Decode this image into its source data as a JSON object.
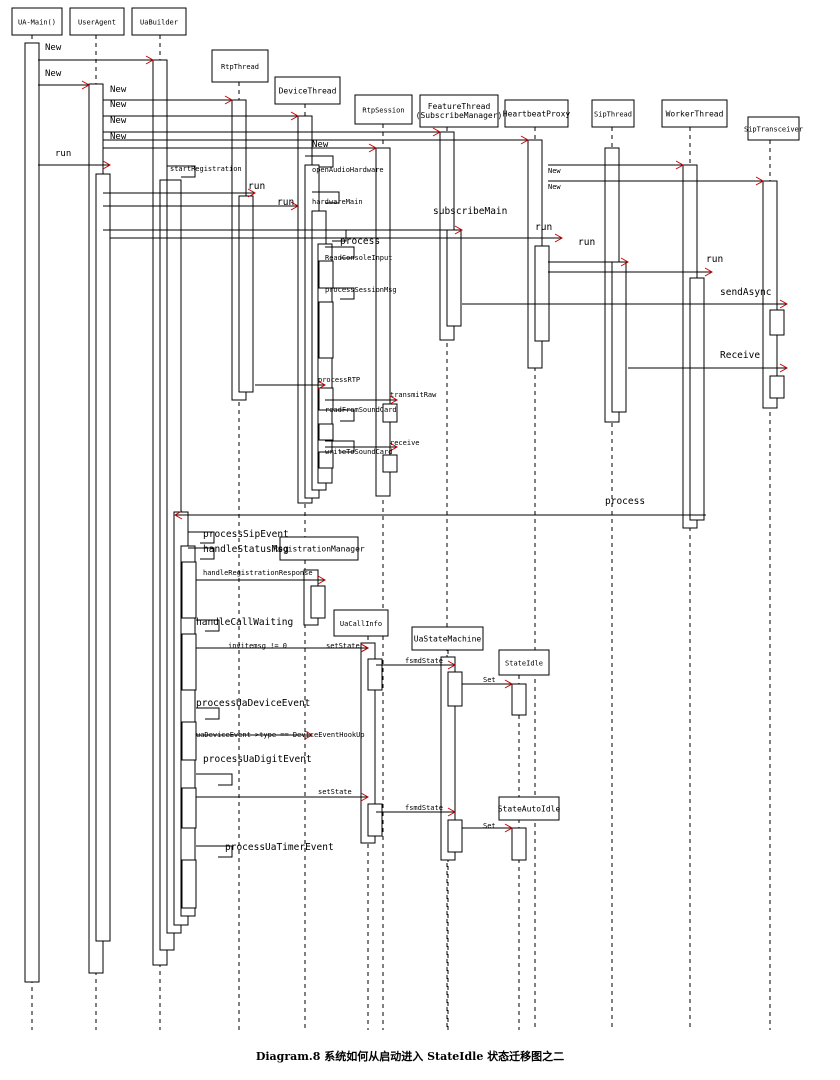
{
  "participants": [
    "UA-Main()",
    "UserAgent",
    "UaBuilder",
    "RtpThread",
    "DeviceThread",
    "RtpSession",
    "FeatureThread\n(SubscribeManager)",
    "HeartbeatProxy",
    "SipThread",
    "WorkerThread",
    "SipTransceiver",
    "RegistrationManager",
    "UaCallInfo",
    "UaStateMachine",
    "StateIdle",
    "StateAutoIdle"
  ],
  "messages": [
    "New",
    "New",
    "New",
    "New",
    "New",
    "New",
    "New",
    "run",
    "startRegistration",
    "New",
    "New",
    "run",
    "run",
    "hardwareMain",
    "openAudioHardware",
    "subscribeMain",
    "run",
    "run",
    "process",
    "ReadConsoleInput",
    "processSessionMsg",
    "run",
    "sendAsync",
    "Receive",
    "processRTP",
    "transmitRaw",
    "readFromSoundCard",
    "receive",
    "writeToSoundCard",
    "process",
    "processSipEvent",
    "handleStatusMsg",
    "handleRegistrationResponse",
    "handleCallWaiting",
    "invitemsg != 0",
    "setState",
    "fsmdState",
    "Set",
    "processUaDeviceEvent",
    "uaDeviceEvent->type == DeviceEventHookUp",
    "processUaDigitEvent",
    "setState",
    "fsmdState",
    "Set",
    "processUaTimerEvent"
  ],
  "caption": "Diagram.8 系统如何从启动进入 StateIdle 状态迁移图之二"
}
